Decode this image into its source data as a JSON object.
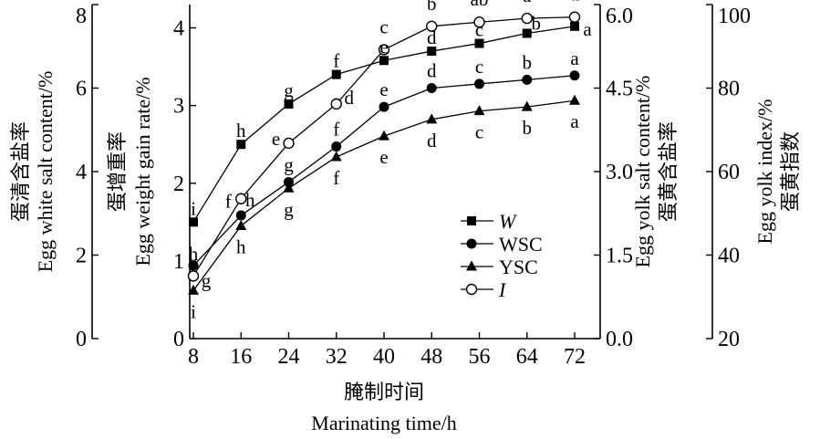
{
  "chart_data": {
    "type": "line",
    "x": [
      8,
      16,
      24,
      32,
      40,
      48,
      56,
      64,
      72
    ],
    "xlabel": [
      "腌制时间",
      "Marinating time/h"
    ],
    "xlim": [
      8,
      72
    ],
    "axes": [
      {
        "id": "white_salt",
        "position": "left-outer",
        "label": [
          "蛋清含盐率",
          "Egg white salt content/%"
        ],
        "ylim": [
          0,
          8
        ],
        "ticks": [
          "0",
          "2",
          "4",
          "6",
          "8"
        ]
      },
      {
        "id": "weight_gain",
        "position": "left-inner",
        "label": [
          "蛋增重率",
          "Egg weight gain rate/%"
        ],
        "ylim": [
          0,
          4.3
        ],
        "ticks": [
          "0",
          "1",
          "2",
          "3",
          "4"
        ]
      },
      {
        "id": "yolk_salt",
        "position": "right-inner",
        "label": [
          "Egg yolk salt content/%",
          "蛋黄含盐率"
        ],
        "ylim": [
          0,
          6.0
        ],
        "ticks": [
          "0.0",
          "1.5",
          "3.0",
          "4.5",
          "6.0"
        ]
      },
      {
        "id": "yolk_index",
        "position": "right-outer",
        "label": [
          "Egg yolk index/%",
          "蛋黄指数"
        ],
        "ylim": [
          20,
          100
        ],
        "ticks": [
          "20",
          "40",
          "60",
          "80",
          "100"
        ]
      }
    ],
    "series": [
      {
        "name": "W",
        "axis": "weight_gain",
        "marker": "square-filled",
        "values": [
          1.5,
          2.5,
          3.02,
          3.4,
          3.58,
          3.7,
          3.8,
          3.93,
          4.02
        ],
        "letters": [
          "i",
          "h",
          "g",
          "f",
          "e",
          "d",
          "c",
          "b",
          "a"
        ]
      },
      {
        "name": "WSC",
        "axis": "white_salt",
        "marker": "circle-filled",
        "values": [
          1.75,
          2.95,
          3.75,
          4.6,
          5.55,
          6.0,
          6.1,
          6.2,
          6.3
        ],
        "letters": [
          "h",
          "h",
          "g",
          "f",
          "e",
          "d",
          "c",
          "b",
          "a"
        ]
      },
      {
        "name": "YSC",
        "axis": "white_salt",
        "marker": "triangle-filled",
        "values": [
          1.15,
          2.7,
          3.6,
          4.35,
          4.85,
          5.25,
          5.45,
          5.55,
          5.7
        ],
        "letters": [
          "i",
          "h",
          "g",
          "f",
          "e",
          "d",
          "c",
          "b",
          "a"
        ]
      },
      {
        "name": "I",
        "axis": "yolk_index",
        "marker": "circle-open",
        "values": [
          35.0,
          53.5,
          66.8,
          76.2,
          89.2,
          94.8,
          95.8,
          96.7,
          97.0
        ],
        "letters": [
          "g",
          "f",
          "e",
          "d",
          "c",
          "b",
          "ab",
          "a",
          "a"
        ]
      }
    ],
    "legend": {
      "position": "inside-right",
      "entries": [
        "W",
        "WSC",
        "YSC",
        "I"
      ]
    },
    "grid": false
  }
}
